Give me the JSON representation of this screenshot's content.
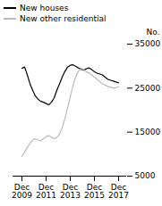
{
  "chart_data": {
    "type": "line",
    "y_label": "No.",
    "categories": [
      "Dec\n2009",
      null,
      null,
      null,
      null,
      null,
      null,
      null,
      null,
      "Dec\n2011",
      null,
      null,
      null,
      null,
      null,
      null,
      null,
      null,
      "Dec\n2013",
      null,
      null,
      null,
      null,
      null,
      null,
      null,
      null,
      "Dec\n2015",
      null,
      null,
      null,
      null,
      null,
      null,
      null,
      null,
      "Dec\n2017"
    ],
    "series": [
      {
        "name": "New houses",
        "color": "#000000",
        "values": [
          29500,
          29800,
          28000,
          26000,
          24500,
          23200,
          22500,
          22000,
          21800,
          21500,
          21200,
          21800,
          22800,
          24500,
          26000,
          27500,
          28800,
          29800,
          30200,
          30300,
          30000,
          29600,
          29300,
          29100,
          29400,
          29600,
          29200,
          28700,
          28400,
          28200,
          28000,
          27500,
          27000,
          26800,
          26600,
          26400,
          26200
        ]
      },
      {
        "name": "New other residential",
        "color": "#bbbbbb",
        "values": [
          9500,
          10500,
          11500,
          12500,
          13200,
          13500,
          13200,
          13000,
          13500,
          14000,
          14200,
          13800,
          13500,
          13800,
          14500,
          16000,
          18000,
          20500,
          23000,
          25500,
          27500,
          28800,
          29500,
          29200,
          28700,
          28500,
          28000,
          27500,
          27000,
          26500,
          26000,
          25700,
          25400,
          25200,
          25000,
          25100,
          25300
        ]
      }
    ],
    "ylim": [
      5000,
      35000
    ],
    "yticks": [
      5000,
      15000,
      25000,
      35000
    ],
    "grid": false,
    "legend": "upper left"
  }
}
